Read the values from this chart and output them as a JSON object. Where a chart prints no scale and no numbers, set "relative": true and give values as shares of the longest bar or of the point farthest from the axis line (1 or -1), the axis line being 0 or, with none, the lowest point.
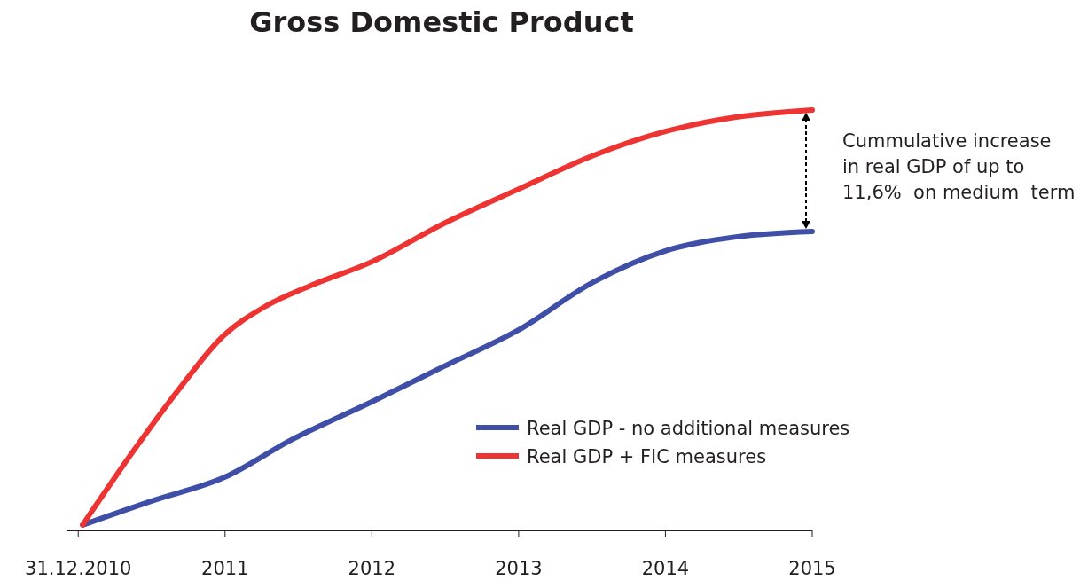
{
  "chart_data": {
    "type": "line",
    "title": "Gross Domestic Product",
    "relative": true,
    "xlim": [
      2009.92,
      2015
    ],
    "xticks": [
      {
        "value": 2010,
        "label": "31.12.2010"
      },
      2011,
      2012,
      2013,
      2014,
      2015
    ],
    "series": [
      {
        "name": "Real GDP - no additional measures",
        "color": "#3f4ea6",
        "x": [
          2010.03,
          2010.5,
          2011,
          2011.46,
          2012,
          2012.49,
          2013,
          2013.51,
          2014,
          2014.48,
          2015
        ],
        "values": [
          0.013,
          0.07,
          0.127,
          0.217,
          0.306,
          0.39,
          0.477,
          0.591,
          0.665,
          0.698,
          0.711
        ]
      },
      {
        "name": "Real GDP + FIC measures",
        "color": "#ee3432",
        "x": [
          2010.03,
          2010.37,
          2010.68,
          2010.98,
          2011.28,
          2011.58,
          2012,
          2012.49,
          2013,
          2013.51,
          2014,
          2014.48,
          2015
        ],
        "values": [
          0.013,
          0.186,
          0.333,
          0.46,
          0.534,
          0.582,
          0.639,
          0.73,
          0.812,
          0.892,
          0.949,
          0.983,
          1
        ]
      }
    ],
    "annotations": [
      "Cummulative increase\nin real GDP of up to\n11,6%  on medium  term"
    ],
    "legend": "bottom right",
    "grid": false,
    "marker": "none",
    "line_style": "solid"
  }
}
